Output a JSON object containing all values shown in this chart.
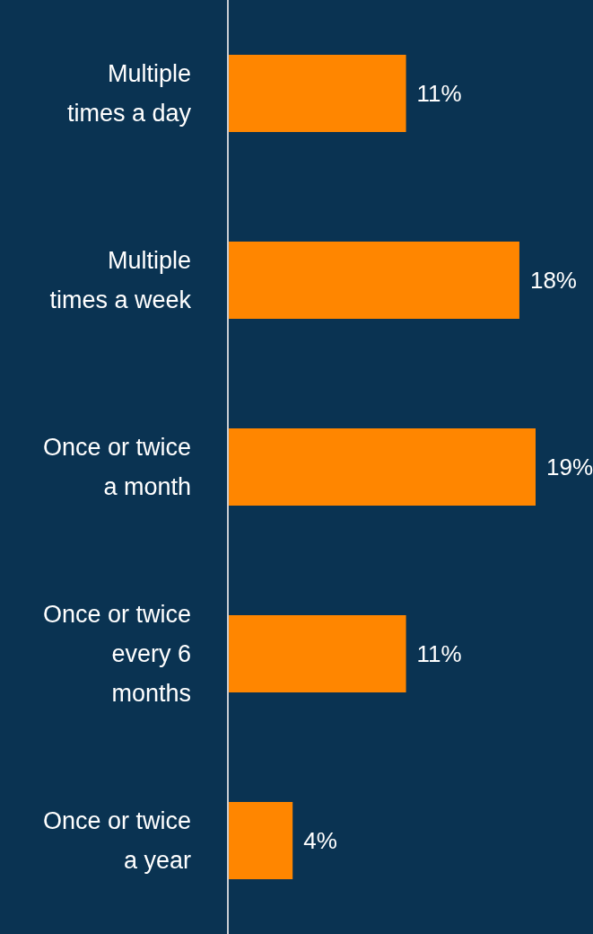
{
  "chart_data": {
    "type": "bar",
    "orientation": "horizontal",
    "categories": [
      "Multiple times a day",
      "Multiple times a week",
      "Once or twice a month",
      "Once or twice every 6 months",
      "Once or twice a year"
    ],
    "values": [
      11,
      18,
      19,
      11,
      4
    ],
    "value_labels": [
      "11%",
      "18%",
      "19%",
      "11%",
      "4%"
    ],
    "color": "#ff8600",
    "grid": false,
    "legend": false
  }
}
